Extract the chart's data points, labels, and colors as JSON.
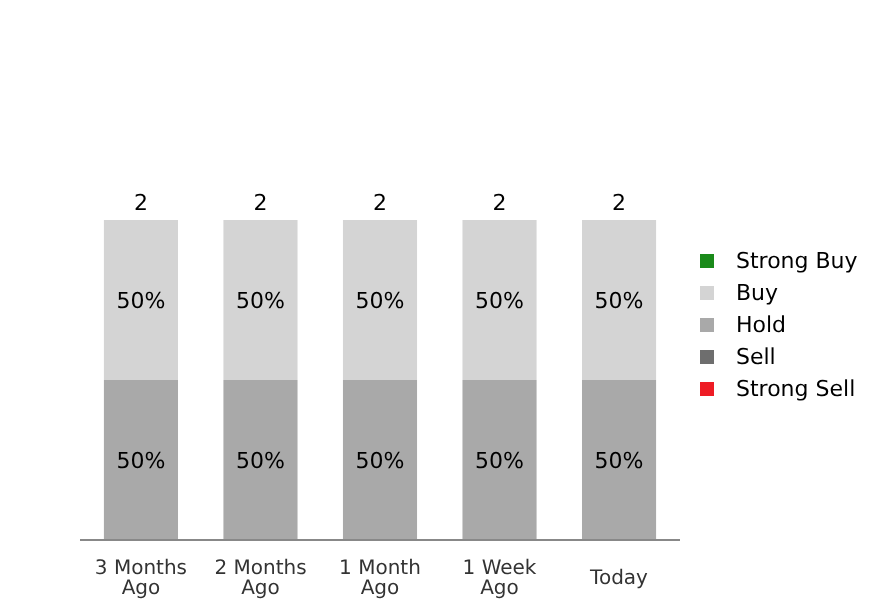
{
  "chart_data": {
    "type": "bar",
    "stacked": true,
    "categories": [
      "3 Months Ago",
      "2 Months Ago",
      "1 Month Ago",
      "1 Week Ago",
      "Today"
    ],
    "series": [
      {
        "name": "Strong Sell",
        "color": "#ee1c25",
        "values": [
          null,
          null,
          null,
          null,
          null
        ]
      },
      {
        "name": "Sell",
        "color": "#6e6e6e",
        "values": [
          null,
          null,
          null,
          null,
          null
        ]
      },
      {
        "name": "Hold",
        "color": "#a9a9a9",
        "values": [
          50,
          50,
          50,
          50,
          50
        ],
        "value_labels": [
          "50%",
          "50%",
          "50%",
          "50%",
          "50%"
        ]
      },
      {
        "name": "Buy",
        "color": "#d4d4d4",
        "values": [
          50,
          50,
          50,
          50,
          50
        ],
        "value_labels": [
          "50%",
          "50%",
          "50%",
          "50%",
          "50%"
        ]
      },
      {
        "name": "Strong Buy",
        "color": "#1a8a1a",
        "values": [
          null,
          null,
          null,
          null,
          null
        ]
      }
    ],
    "annotations": [
      {
        "text": "2",
        "x": "3 Months Ago",
        "y": 100
      },
      {
        "text": "2",
        "x": "2 Months Ago",
        "y": 100
      },
      {
        "text": "2",
        "x": "1 Month Ago",
        "y": 100
      },
      {
        "text": "2",
        "x": "1 Week Ago",
        "y": 100
      },
      {
        "text": "2",
        "x": "Today",
        "y": 100
      }
    ],
    "legend": "right"
  }
}
